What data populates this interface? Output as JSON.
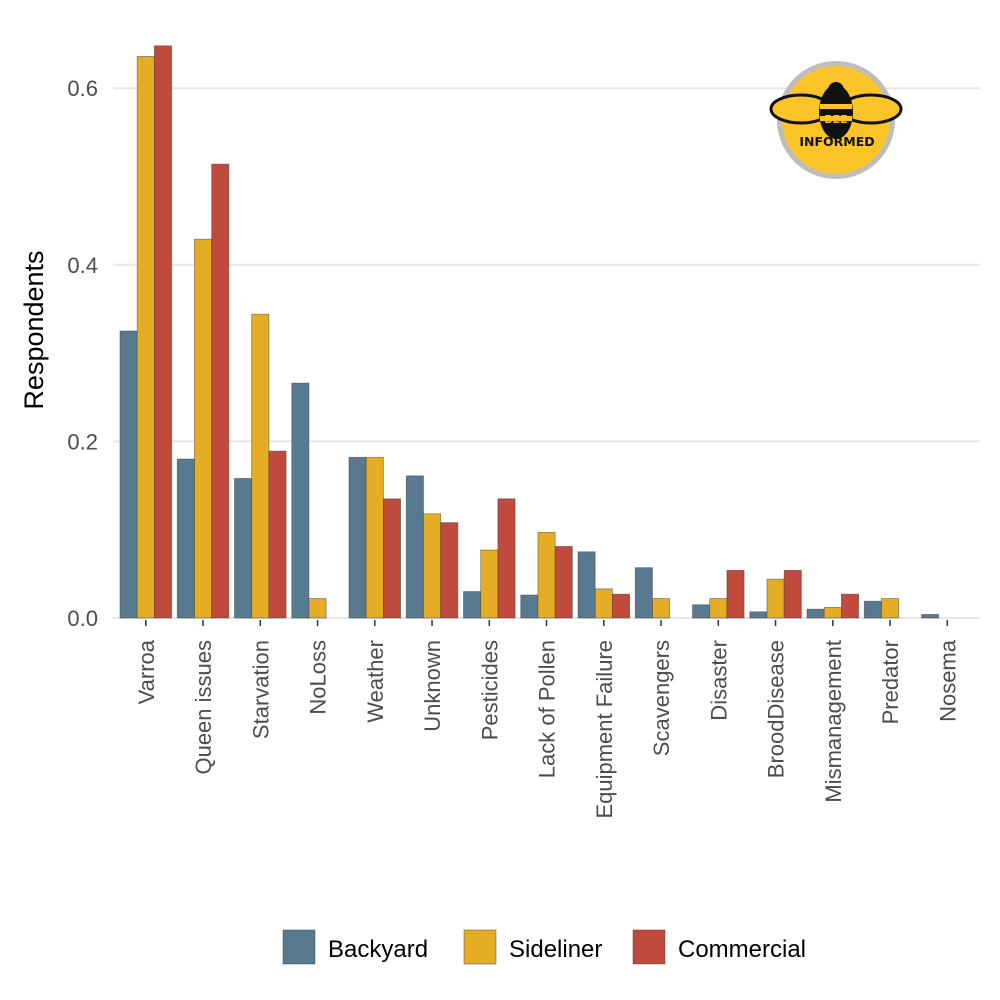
{
  "chart_data": {
    "type": "bar",
    "title": "",
    "xlabel": "",
    "ylabel": "Respondents",
    "ylim": [
      0,
      0.65
    ],
    "yticks": [
      0.0,
      0.2,
      0.4,
      0.6
    ],
    "ytick_labels": [
      "0.0",
      "0.2",
      "0.4",
      "0.6"
    ],
    "grid": "horizontal",
    "legend_position": "bottom",
    "categories": [
      "Varroa",
      "Queen issues",
      "Starvation",
      "NoLoss",
      "Weather",
      "Unknown",
      "Pesticides",
      "Lack of Pollen",
      "Equipment Failure",
      "Scavengers",
      "Disaster",
      "BroodDisease",
      "Mismanagement",
      "Predator",
      "Nosema"
    ],
    "series": [
      {
        "name": "Backyard",
        "color": "#577a91",
        "values": [
          0.325,
          0.18,
          0.158,
          0.266,
          0.182,
          0.161,
          0.03,
          0.026,
          0.075,
          0.057,
          0.015,
          0.007,
          0.01,
          0.019,
          0.004
        ]
      },
      {
        "name": "Sideliner",
        "color": "#e5ac25",
        "values": [
          0.636,
          0.429,
          0.344,
          0.022,
          0.182,
          0.118,
          0.077,
          0.097,
          0.033,
          0.022,
          0.022,
          0.044,
          0.012,
          0.022,
          0
        ]
      },
      {
        "name": "Commercial",
        "color": "#c04a3c",
        "values": [
          0.648,
          0.514,
          0.189,
          0,
          0.135,
          0.108,
          0.135,
          0.081,
          0.027,
          0,
          0.054,
          0.054,
          0.027,
          0,
          0
        ]
      }
    ]
  },
  "logo": {
    "line1": "BEE",
    "line2": "INFORMED",
    "icon": "bee-icon",
    "circle_color": "#fbc52a",
    "ring_color": "#bdbdbd"
  }
}
